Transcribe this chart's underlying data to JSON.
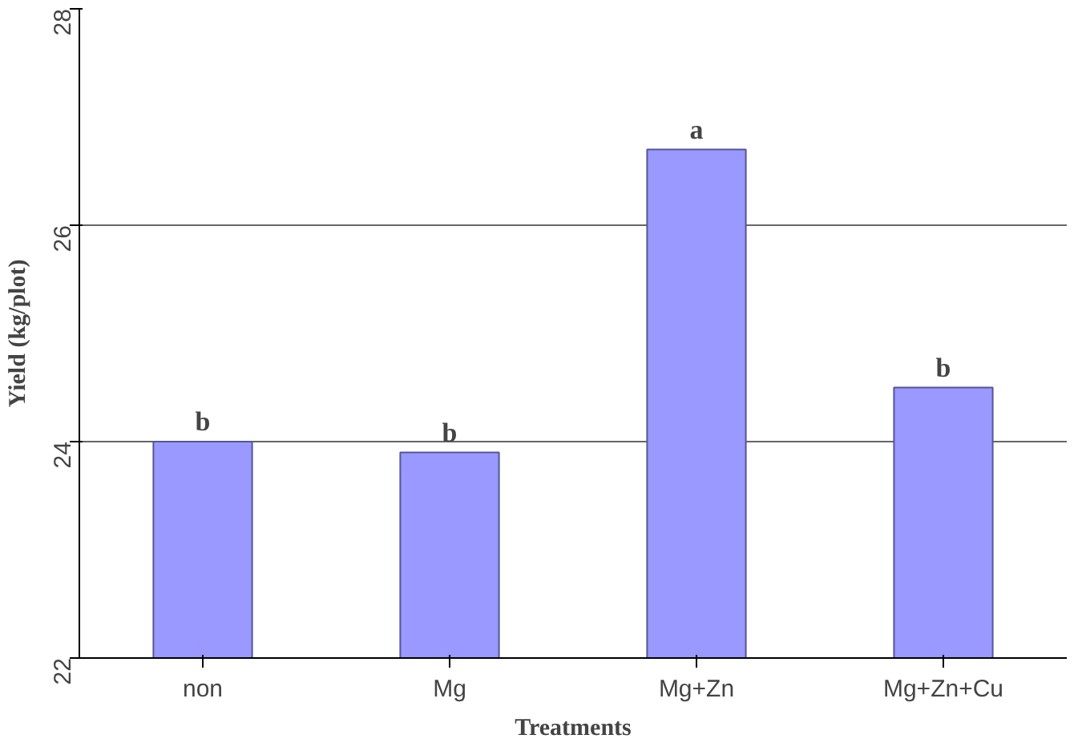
{
  "chart_data": {
    "type": "bar",
    "xlabel": "Treatments",
    "ylabel": "Yield (kg/plot)",
    "categories": [
      "non",
      "Mg",
      "Mg+Zn",
      "Mg+Zn+Cu"
    ],
    "values": [
      24.0,
      23.9,
      26.7,
      24.5
    ],
    "color": "#9999ff",
    "ylim": [
      22,
      28
    ],
    "yticks": [
      22,
      24,
      26,
      28
    ],
    "grid": "y",
    "annotations": [
      {
        "text": "b",
        "x": "non",
        "y": 24.0
      },
      {
        "text": "b",
        "x": "Mg",
        "y": 23.9
      },
      {
        "text": "a",
        "x": "Mg+Zn",
        "y": 26.7
      },
      {
        "text": "b",
        "x": "Mg+Zn+Cu",
        "y": 24.5
      }
    ]
  }
}
